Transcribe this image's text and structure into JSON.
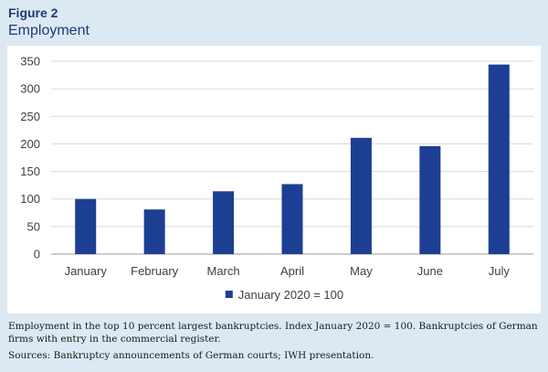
{
  "figure": {
    "label": "Figure 2",
    "title": "Employment"
  },
  "chart_data": {
    "type": "bar",
    "categories": [
      "January",
      "February",
      "March",
      "April",
      "May",
      "June",
      "July"
    ],
    "series": [
      {
        "name": "January 2020 = 100",
        "values": [
          100,
          81,
          114,
          127,
          211,
          196,
          344
        ]
      }
    ],
    "yticks": [
      0,
      50,
      100,
      150,
      200,
      250,
      300,
      350
    ],
    "ylim": [
      0,
      350
    ],
    "grid": true,
    "legend_position": "bottom",
    "bar_color": "#1c3f94"
  },
  "caption": {
    "note": "Employment in the top 10 percent largest bankruptcies. Index January 2020 = 100. Bankruptcies of German firms with entry in the commercial register.",
    "sources": "Sources: Bankruptcy announcements of German courts; IWH presentation."
  },
  "colors": {
    "background": "#dde9f2",
    "title": "#1c3a78",
    "bar": "#1c3f94"
  }
}
